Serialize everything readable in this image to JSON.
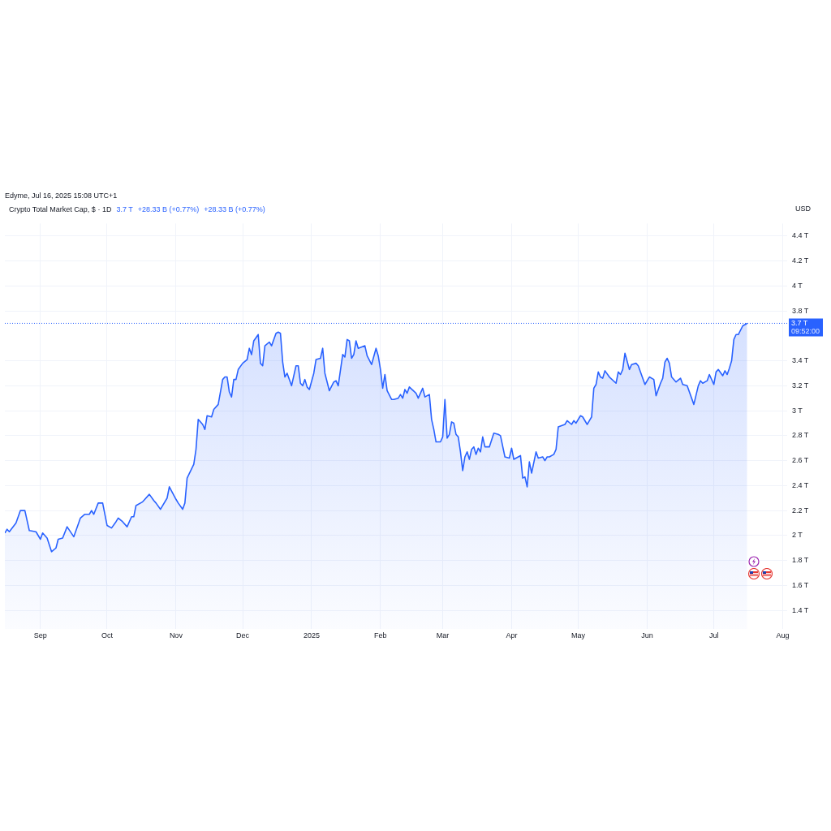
{
  "chart_data": {
    "type": "area",
    "title": "Crypto Total Market Cap, $ · 1D",
    "subtitle": "Edyme, Jul 16, 2025 15:08 UTC+1",
    "ylabel": "USD",
    "annotations": [
      "3.7 T",
      "+28.33 B (+0.77%)",
      "+28.33 B (+0.77%)",
      "09:52:00"
    ],
    "x": [
      "2024-08-16",
      "2024-08-17",
      "2024-08-18",
      "2024-08-21",
      "2024-08-23",
      "2024-08-25",
      "2024-08-27",
      "2024-08-30",
      "2024-09-01",
      "2024-09-02",
      "2024-09-04",
      "2024-09-06",
      "2024-09-08",
      "2024-09-09",
      "2024-09-11",
      "2024-09-13",
      "2024-09-16",
      "2024-09-19",
      "2024-09-21",
      "2024-09-23",
      "2024-09-24",
      "2024-09-25",
      "2024-09-27",
      "2024-09-29",
      "2024-10-01",
      "2024-10-03",
      "2024-10-05",
      "2024-10-06",
      "2024-10-08",
      "2024-10-10",
      "2024-10-12",
      "2024-10-13",
      "2024-10-14",
      "2024-10-17",
      "2024-10-18",
      "2024-10-20",
      "2024-10-22",
      "2024-10-23",
      "2024-10-25",
      "2024-10-28",
      "2024-10-29",
      "2024-11-01",
      "2024-11-02",
      "2024-11-04",
      "2024-11-05",
      "2024-11-06",
      "2024-11-09",
      "2024-11-10",
      "2024-11-11",
      "2024-11-13",
      "2024-11-14",
      "2024-11-15",
      "2024-11-17",
      "2024-11-18",
      "2024-11-20",
      "2024-11-22",
      "2024-11-23",
      "2024-11-24",
      "2024-11-25",
      "2024-11-26",
      "2024-11-27",
      "2024-11-28",
      "2024-11-29",
      "2024-12-01",
      "2024-12-03",
      "2024-12-04",
      "2024-12-05",
      "2024-12-06",
      "2024-12-08",
      "2024-12-09",
      "2024-12-10",
      "2024-12-11",
      "2024-12-13",
      "2024-12-14",
      "2024-12-16",
      "2024-12-17",
      "2024-12-18",
      "2024-12-19",
      "2024-12-20",
      "2024-12-21",
      "2024-12-23",
      "2024-12-25",
      "2024-12-26",
      "2024-12-27",
      "2024-12-28",
      "2024-12-29",
      "2024-12-30",
      "2024-12-31",
      "2025-01-02",
      "2025-01-03",
      "2025-01-05",
      "2025-01-06",
      "2025-01-07",
      "2025-01-09",
      "2025-01-11",
      "2025-01-12",
      "2025-01-13",
      "2025-01-15",
      "2025-01-16",
      "2025-01-17",
      "2025-01-18",
      "2025-01-19",
      "2025-01-20",
      "2025-01-21",
      "2025-01-22",
      "2025-01-25",
      "2025-01-26",
      "2025-01-28",
      "2025-01-30",
      "2025-01-31",
      "2025-02-01",
      "2025-02-02",
      "2025-02-03",
      "2025-02-04",
      "2025-02-06",
      "2025-02-07",
      "2025-02-09",
      "2025-02-10",
      "2025-02-11",
      "2025-02-12",
      "2025-02-13",
      "2025-02-14",
      "2025-02-17",
      "2025-02-18",
      "2025-02-20",
      "2025-02-21",
      "2025-02-23",
      "2025-02-24",
      "2025-02-25",
      "2025-02-26",
      "2025-02-28",
      "2025-03-01",
      "2025-03-02",
      "2025-03-03",
      "2025-03-04",
      "2025-03-05",
      "2025-03-06",
      "2025-03-07",
      "2025-03-08",
      "2025-03-09",
      "2025-03-10",
      "2025-03-11",
      "2025-03-12",
      "2025-03-13",
      "2025-03-14",
      "2025-03-15",
      "2025-03-16",
      "2025-03-17",
      "2025-03-18",
      "2025-03-19",
      "2025-03-20",
      "2025-03-22",
      "2025-03-24",
      "2025-03-26",
      "2025-03-27",
      "2025-03-29",
      "2025-03-31",
      "2025-04-01",
      "2025-04-02",
      "2025-04-05",
      "2025-04-06",
      "2025-04-07",
      "2025-04-08",
      "2025-04-09",
      "2025-04-10",
      "2025-04-12",
      "2025-04-13",
      "2025-04-15",
      "2025-04-16",
      "2025-04-17",
      "2025-04-18",
      "2025-04-20",
      "2025-04-21",
      "2025-04-22",
      "2025-04-25",
      "2025-04-26",
      "2025-04-28",
      "2025-04-29",
      "2025-04-30",
      "2025-05-02",
      "2025-05-03",
      "2025-05-05",
      "2025-05-06",
      "2025-05-07",
      "2025-05-08",
      "2025-05-09",
      "2025-05-10",
      "2025-05-11",
      "2025-05-12",
      "2025-05-13",
      "2025-05-15",
      "2025-05-18",
      "2025-05-19",
      "2025-05-20",
      "2025-05-21",
      "2025-05-22",
      "2025-05-24",
      "2025-05-25",
      "2025-05-27",
      "2025-05-28",
      "2025-05-31",
      "2025-06-02",
      "2025-06-04",
      "2025-06-05",
      "2025-06-07",
      "2025-06-08",
      "2025-06-09",
      "2025-06-10",
      "2025-06-11",
      "2025-06-12",
      "2025-06-14",
      "2025-06-16",
      "2025-06-17",
      "2025-06-19",
      "2025-06-22",
      "2025-06-24",
      "2025-06-25",
      "2025-06-26",
      "2025-06-28",
      "2025-06-29",
      "2025-07-01",
      "2025-07-02",
      "2025-07-03",
      "2025-07-05",
      "2025-07-06",
      "2025-07-07",
      "2025-07-08",
      "2025-07-09",
      "2025-07-10",
      "2025-07-11",
      "2025-07-12",
      "2025-07-14",
      "2025-07-15",
      "2025-07-16"
    ],
    "series": [
      {
        "color": "#2962ff",
        "values": [
          2.02,
          2.05,
          2.03,
          2.1,
          2.2,
          2.2,
          2.04,
          2.03,
          1.97,
          2.02,
          1.98,
          1.87,
          1.9,
          1.97,
          1.98,
          2.07,
          1.99,
          2.14,
          2.17,
          2.17,
          2.2,
          2.17,
          2.26,
          2.26,
          2.08,
          2.06,
          2.11,
          2.14,
          2.11,
          2.07,
          2.15,
          2.15,
          2.24,
          2.27,
          2.29,
          2.33,
          2.28,
          2.26,
          2.21,
          2.3,
          2.39,
          2.29,
          2.26,
          2.21,
          2.26,
          2.46,
          2.57,
          2.69,
          2.93,
          2.89,
          2.85,
          2.96,
          2.95,
          3.01,
          3.05,
          3.25,
          3.27,
          3.27,
          3.15,
          3.11,
          3.25,
          3.25,
          3.33,
          3.38,
          3.41,
          3.5,
          3.45,
          3.56,
          3.61,
          3.38,
          3.36,
          3.52,
          3.55,
          3.52,
          3.62,
          3.63,
          3.62,
          3.39,
          3.27,
          3.3,
          3.2,
          3.36,
          3.36,
          3.22,
          3.2,
          3.25,
          3.19,
          3.17,
          3.3,
          3.41,
          3.42,
          3.5,
          3.3,
          3.16,
          3.23,
          3.24,
          3.2,
          3.45,
          3.43,
          3.57,
          3.56,
          3.42,
          3.45,
          3.56,
          3.5,
          3.52,
          3.44,
          3.37,
          3.5,
          3.44,
          3.33,
          3.18,
          3.29,
          3.16,
          3.09,
          3.09,
          3.1,
          3.13,
          3.1,
          3.17,
          3.14,
          3.19,
          3.14,
          3.1,
          3.18,
          3.11,
          3.13,
          2.93,
          2.85,
          2.75,
          2.75,
          2.79,
          3.09,
          2.78,
          2.81,
          2.91,
          2.9,
          2.81,
          2.79,
          2.67,
          2.52,
          2.63,
          2.67,
          2.61,
          2.69,
          2.71,
          2.65,
          2.7,
          2.67,
          2.79,
          2.71,
          2.71,
          2.82,
          2.81,
          2.8,
          2.63,
          2.62,
          2.7,
          2.61,
          2.64,
          2.46,
          2.47,
          2.39,
          2.59,
          2.5,
          2.67,
          2.62,
          2.63,
          2.6,
          2.63,
          2.63,
          2.65,
          2.69,
          2.87,
          2.89,
          2.92,
          2.89,
          2.92,
          2.9,
          2.96,
          2.95,
          2.89,
          2.92,
          2.95,
          3.18,
          3.21,
          3.31,
          3.27,
          3.26,
          3.32,
          3.27,
          3.22,
          3.31,
          3.29,
          3.33,
          3.46,
          3.33,
          3.37,
          3.38,
          3.36,
          3.21,
          3.27,
          3.25,
          3.12,
          3.22,
          3.26,
          3.39,
          3.42,
          3.38,
          3.27,
          3.23,
          3.26,
          3.21,
          3.2,
          3.05,
          3.2,
          3.24,
          3.22,
          3.24,
          3.29,
          3.21,
          3.31,
          3.33,
          3.28,
          3.32,
          3.29,
          3.34,
          3.4,
          3.57,
          3.61,
          3.61,
          3.68,
          3.69,
          3.7
        ]
      }
    ],
    "xlim": [
      "2024-08-16",
      "2025-08-03"
    ],
    "xticks": [
      {
        "value": "2024-09-01",
        "label": "Sep"
      },
      {
        "value": "2024-10-01",
        "label": "Oct"
      },
      {
        "value": "2024-11-01",
        "label": "Nov"
      },
      {
        "value": "2024-12-01",
        "label": "Dec"
      },
      {
        "value": "2025-01-01",
        "label": "2025"
      },
      {
        "value": "2025-02-01",
        "label": "Feb"
      },
      {
        "value": "2025-03-01",
        "label": "Mar"
      },
      {
        "value": "2025-04-01",
        "label": "Apr"
      },
      {
        "value": "2025-05-01",
        "label": "May"
      },
      {
        "value": "2025-06-01",
        "label": "Jun"
      },
      {
        "value": "2025-07-01",
        "label": "Jul"
      },
      {
        "value": "2025-08-01",
        "label": "Aug"
      }
    ],
    "ylim": [
      1.25,
      4.5
    ],
    "yticks": [
      {
        "value": 1.4,
        "label": "1.4 T"
      },
      {
        "value": 1.6,
        "label": "1.6 T"
      },
      {
        "value": 1.8,
        "label": "1.8 T"
      },
      {
        "value": 2,
        "label": "2 T"
      },
      {
        "value": 2.2,
        "label": "2.2 T"
      },
      {
        "value": 2.4,
        "label": "2.4 T"
      },
      {
        "value": 2.6,
        "label": "2.6 T"
      },
      {
        "value": 2.8,
        "label": "2.8 T"
      },
      {
        "value": 3,
        "label": "3 T"
      },
      {
        "value": 3.2,
        "label": "3.2 T"
      },
      {
        "value": 3.4,
        "label": "3.4 T"
      },
      {
        "value": 3.8,
        "label": "3.8 T"
      },
      {
        "value": 4,
        "label": "4 T"
      },
      {
        "value": 4.2,
        "label": "4.2 T"
      },
      {
        "value": 4.4,
        "label": "4.4 T"
      }
    ],
    "ref_lines": [
      {
        "axis": "y",
        "value": 3.7,
        "label": "3.7 T",
        "color": "#2962ff",
        "line_style": "dotted"
      }
    ],
    "grid": true,
    "legend": false,
    "marker": "none",
    "line_style": "solid"
  }
}
